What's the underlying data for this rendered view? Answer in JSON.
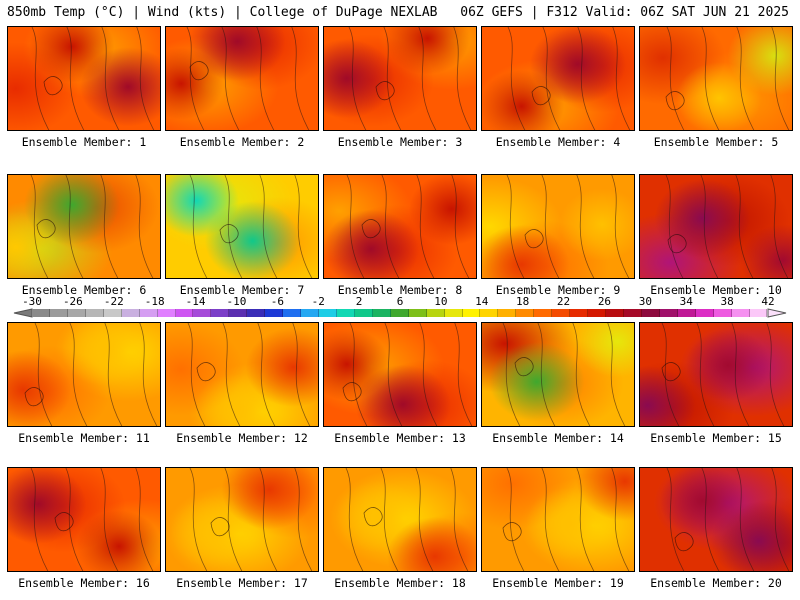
{
  "header": {
    "left": "850mb Temp (°C) | Wind (kts) | College of DuPage NEXLAB",
    "right": "06Z GEFS | F312 Valid: 06Z SAT JUN 21 2025"
  },
  "colorbar": {
    "labels": [
      "-30",
      "-26",
      "-22",
      "-18",
      "-14",
      "-10",
      "-6",
      "-2",
      "2",
      "6",
      "10",
      "14",
      "18",
      "22",
      "26",
      "30",
      "34",
      "38",
      "42"
    ],
    "colors": [
      "#8a8a8a",
      "#9b9b9b",
      "#a7a7a7",
      "#b6b6b6",
      "#c8c8c8",
      "#c9b0e0",
      "#d59ef2",
      "#e07fff",
      "#ce55f2",
      "#a64bd9",
      "#7c3fc8",
      "#5b2fb0",
      "#3a2db7",
      "#1d39d6",
      "#1f6ff0",
      "#25a8f2",
      "#1ecde6",
      "#12d8b4",
      "#10c88a",
      "#1bb462",
      "#3fa82e",
      "#7dbf19",
      "#b7d410",
      "#e6e70c",
      "#fff200",
      "#ffd400",
      "#ffb000",
      "#ff8a00",
      "#ff6a00",
      "#f44b00",
      "#e62b00",
      "#d41800",
      "#b80d10",
      "#a60a28",
      "#8e0a3e",
      "#a0106a",
      "#c01896",
      "#dc2ec4",
      "#ee5ae0",
      "#f590f0",
      "#fbc8f8"
    ],
    "left_arrow_color": "#7a7a7a",
    "right_arrow_color": "#fbe0fa"
  },
  "members": [
    {
      "label": "Ensemble Member: 1",
      "theme": "hot"
    },
    {
      "label": "Ensemble Member: 2",
      "theme": "hot"
    },
    {
      "label": "Ensemble Member: 3",
      "theme": "hot"
    },
    {
      "label": "Ensemble Member: 4",
      "theme": "hot"
    },
    {
      "label": "Ensemble Member: 5",
      "theme": "warm-ne-cool"
    },
    {
      "label": "Ensemble Member: 6",
      "theme": "warm-n-cool"
    },
    {
      "label": "Ensemble Member: 7",
      "theme": "cool"
    },
    {
      "label": "Ensemble Member: 8",
      "theme": "hot"
    },
    {
      "label": "Ensemble Member: 9",
      "theme": "warm"
    },
    {
      "label": "Ensemble Member: 10",
      "theme": "very-hot"
    },
    {
      "label": "Ensemble Member: 11",
      "theme": "warm"
    },
    {
      "label": "Ensemble Member: 12",
      "theme": "warm"
    },
    {
      "label": "Ensemble Member: 13",
      "theme": "hot"
    },
    {
      "label": "Ensemble Member: 14",
      "theme": "warm-e-cool"
    },
    {
      "label": "Ensemble Member: 15",
      "theme": "very-hot"
    },
    {
      "label": "Ensemble Member: 16",
      "theme": "hot"
    },
    {
      "label": "Ensemble Member: 17",
      "theme": "warm"
    },
    {
      "label": "Ensemble Member: 18",
      "theme": "warm"
    },
    {
      "label": "Ensemble Member: 19",
      "theme": "warm"
    },
    {
      "label": "Ensemble Member: 20",
      "theme": "very-hot"
    }
  ]
}
